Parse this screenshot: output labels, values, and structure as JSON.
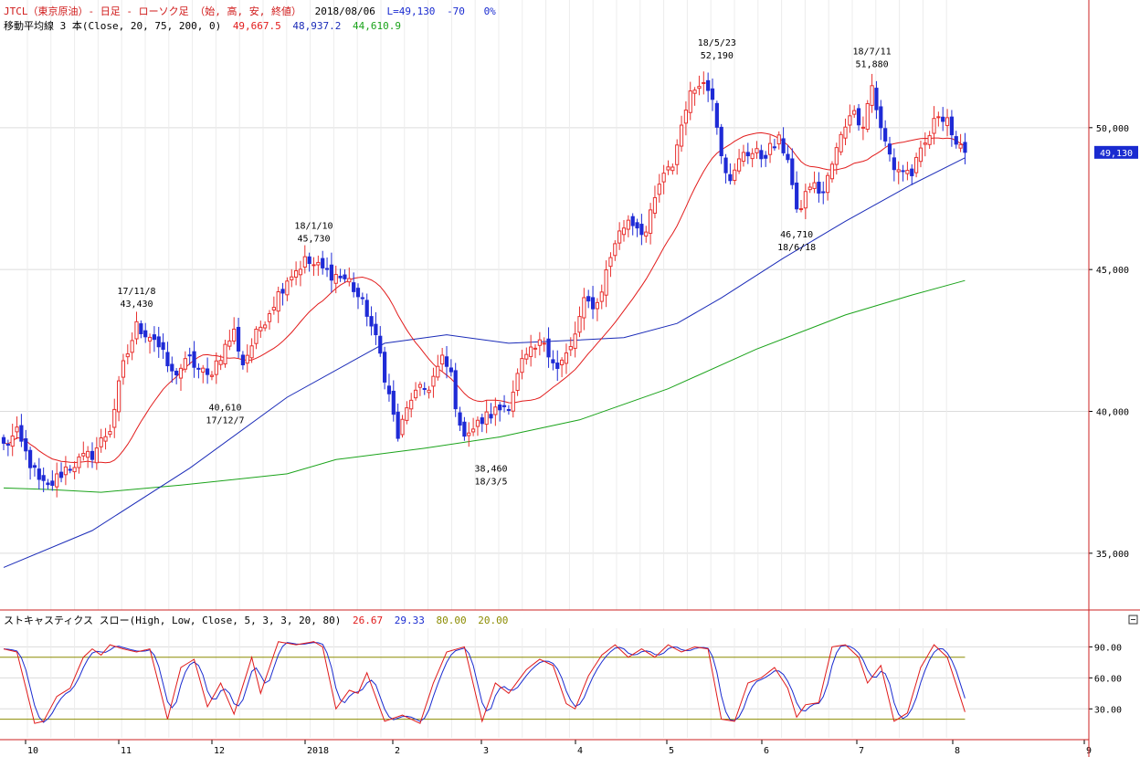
{
  "header": {
    "line1": {
      "title": "JTCL（東京原油）- 日足 - ローソク足 （始, 高, 安, 終値）",
      "date": "2018/08/06",
      "last": "L=49,130",
      "change": "-70",
      "pct": "0%"
    },
    "line2": {
      "label": "移動平均線 3 本(Close, 20, 75, 200, 0)",
      "ma20": "49,667.5",
      "ma75": "48,937.2",
      "ma200": "44,610.9"
    },
    "stoch": {
      "label": "ストキャスティクス スロー(High, Low, Close, 5, 3, 3, 20, 80)",
      "k": "26.67",
      "d": "29.33",
      "upper": "80.00",
      "lower": "20.00"
    }
  },
  "colors": {
    "up": "#e8302e",
    "down": "#1f2bd6",
    "ma20": "#e21c1c",
    "ma75": "#1a2bb8",
    "ma200": "#1aa31a",
    "stoch_k": "#e01a1a",
    "stoch_d": "#1a2bd0",
    "bands": "#8b8b00",
    "grid": "#dcdcdc",
    "frame": "#cc2222"
  },
  "chart_data": [
    {
      "type": "candlestick",
      "title": "JTCL（東京原油）- 日足",
      "ylim": [
        33000,
        54500
      ],
      "y_ticks": [
        "35,000",
        "40,000",
        "45,000",
        "50,000"
      ],
      "y_tick_values": [
        35000,
        40000,
        45000,
        50000
      ],
      "current_price_label": "49,130",
      "current_price": 49130,
      "x_month_labels": [
        "10",
        "11",
        "12",
        "2018",
        "2",
        "3",
        "4",
        "5",
        "6",
        "7",
        "8",
        "9"
      ],
      "anchors": [
        {
          "day": 0,
          "close": 38800
        },
        {
          "day": 3,
          "close": 39200
        },
        {
          "day": 8,
          "close": 37500
        },
        {
          "day": 10,
          "close": 37300
        },
        {
          "day": 14,
          "close": 38000
        },
        {
          "day": 20,
          "close": 38500
        },
        {
          "day": 24,
          "close": 39400
        },
        {
          "day": 27,
          "close": 41600
        },
        {
          "day": 30,
          "close": 43000
        },
        {
          "day": 34,
          "close": 42600
        },
        {
          "day": 38,
          "close": 41300
        },
        {
          "day": 42,
          "close": 41800
        },
        {
          "day": 46,
          "close": 41200
        },
        {
          "day": 52,
          "close": 42800
        },
        {
          "day": 54,
          "close": 41700
        },
        {
          "day": 58,
          "close": 43000
        },
        {
          "day": 64,
          "close": 44700
        },
        {
          "day": 68,
          "close": 45300
        },
        {
          "day": 72,
          "close": 45000
        },
        {
          "day": 78,
          "close": 44600
        },
        {
          "day": 82,
          "close": 43500
        },
        {
          "day": 85,
          "close": 42000
        },
        {
          "day": 89,
          "close": 39100
        },
        {
          "day": 92,
          "close": 40500
        },
        {
          "day": 96,
          "close": 40900
        },
        {
          "day": 99,
          "close": 41800
        },
        {
          "day": 101,
          "close": 41300
        },
        {
          "day": 103,
          "close": 39300
        },
        {
          "day": 106,
          "close": 39400
        },
        {
          "day": 109,
          "close": 39800
        },
        {
          "day": 114,
          "close": 40300
        },
        {
          "day": 117,
          "close": 41700
        },
        {
          "day": 122,
          "close": 42500
        },
        {
          "day": 125,
          "close": 41500
        },
        {
          "day": 128,
          "close": 42200
        },
        {
          "day": 131,
          "close": 43800
        },
        {
          "day": 134,
          "close": 43800
        },
        {
          "day": 138,
          "close": 46000
        },
        {
          "day": 141,
          "close": 46800
        },
        {
          "day": 145,
          "close": 46300
        },
        {
          "day": 148,
          "close": 48000
        },
        {
          "day": 151,
          "close": 48700
        },
        {
          "day": 154,
          "close": 50800
        },
        {
          "day": 157,
          "close": 51700
        },
        {
          "day": 160,
          "close": 51200
        },
        {
          "day": 162,
          "close": 49200
        },
        {
          "day": 164,
          "close": 48000
        },
        {
          "day": 167,
          "close": 49200
        },
        {
          "day": 171,
          "close": 49000
        },
        {
          "day": 175,
          "close": 49500
        },
        {
          "day": 177,
          "close": 49000
        },
        {
          "day": 179,
          "close": 46900
        },
        {
          "day": 182,
          "close": 48000
        },
        {
          "day": 185,
          "close": 47700
        },
        {
          "day": 188,
          "close": 49200
        },
        {
          "day": 191,
          "close": 50600
        },
        {
          "day": 194,
          "close": 50200
        },
        {
          "day": 196,
          "close": 51500
        },
        {
          "day": 198,
          "close": 49900
        },
        {
          "day": 201,
          "close": 48600
        },
        {
          "day": 205,
          "close": 48400
        },
        {
          "day": 208,
          "close": 49400
        },
        {
          "day": 211,
          "close": 50500
        },
        {
          "day": 213,
          "close": 50400
        },
        {
          "day": 215,
          "close": 49200
        },
        {
          "day": 217,
          "close": 49130
        }
      ],
      "ma75_points": [
        [
          0,
          34500
        ],
        [
          20,
          35800
        ],
        [
          42,
          38000
        ],
        [
          64,
          40500
        ],
        [
          86,
          42400
        ],
        [
          100,
          42700
        ],
        [
          114,
          42400
        ],
        [
          128,
          42500
        ],
        [
          140,
          42600
        ],
        [
          152,
          43100
        ],
        [
          162,
          44000
        ],
        [
          176,
          45400
        ],
        [
          190,
          46700
        ],
        [
          205,
          48000
        ],
        [
          217,
          48937
        ]
      ],
      "ma200_points": [
        [
          0,
          37300
        ],
        [
          10,
          37250
        ],
        [
          22,
          37150
        ],
        [
          40,
          37400
        ],
        [
          64,
          37800
        ],
        [
          75,
          38300
        ],
        [
          95,
          38700
        ],
        [
          112,
          39100
        ],
        [
          130,
          39700
        ],
        [
          150,
          40800
        ],
        [
          170,
          42200
        ],
        [
          190,
          43400
        ],
        [
          205,
          44100
        ],
        [
          217,
          44611
        ]
      ],
      "annotations": [
        {
          "date": "17/11/8",
          "value": "43,430",
          "day": 30,
          "price": 43430,
          "pos": "above"
        },
        {
          "date": "17/12/7",
          "value": "40,610",
          "day": 50,
          "price": 40610,
          "pos": "below"
        },
        {
          "date": "18/1/10",
          "value": "45,730",
          "day": 70,
          "price": 45730,
          "pos": "above"
        },
        {
          "date": "18/3/5",
          "value": "38,460",
          "day": 110,
          "price": 38460,
          "pos": "below"
        },
        {
          "date": "18/5/23",
          "value": "52,190",
          "day": 161,
          "price": 52190,
          "pos": "above"
        },
        {
          "date": "18/6/18",
          "value": "46,710",
          "day": 179,
          "price": 46710,
          "pos": "below"
        },
        {
          "date": "18/7/11",
          "value": "51,880",
          "day": 196,
          "price": 51880,
          "pos": "above"
        }
      ]
    },
    {
      "type": "line",
      "title": "ストキャスティクス スロー",
      "ylim": [
        2,
        108
      ],
      "y_ticks": [
        "30.00",
        "60.00",
        "90.00"
      ],
      "y_tick_values": [
        30,
        60,
        90
      ],
      "bands": [
        80,
        20
      ],
      "k_anchors": [
        [
          0,
          88
        ],
        [
          3,
          85
        ],
        [
          7,
          16
        ],
        [
          9,
          18
        ],
        [
          12,
          42
        ],
        [
          15,
          50
        ],
        [
          18,
          80
        ],
        [
          20,
          88
        ],
        [
          22,
          82
        ],
        [
          24,
          92
        ],
        [
          27,
          88
        ],
        [
          30,
          85
        ],
        [
          33,
          88
        ],
        [
          37,
          20
        ],
        [
          40,
          70
        ],
        [
          43,
          78
        ],
        [
          46,
          32
        ],
        [
          49,
          55
        ],
        [
          52,
          25
        ],
        [
          56,
          80
        ],
        [
          58,
          45
        ],
        [
          62,
          95
        ],
        [
          66,
          92
        ],
        [
          70,
          95
        ],
        [
          72,
          90
        ],
        [
          75,
          30
        ],
        [
          78,
          48
        ],
        [
          80,
          45
        ],
        [
          82,
          65
        ],
        [
          86,
          18
        ],
        [
          90,
          24
        ],
        [
          92,
          20
        ],
        [
          94,
          16
        ],
        [
          97,
          55
        ],
        [
          100,
          85
        ],
        [
          104,
          90
        ],
        [
          108,
          18
        ],
        [
          111,
          55
        ],
        [
          114,
          45
        ],
        [
          118,
          68
        ],
        [
          121,
          78
        ],
        [
          124,
          72
        ],
        [
          127,
          35
        ],
        [
          129,
          30
        ],
        [
          132,
          62
        ],
        [
          135,
          82
        ],
        [
          138,
          92
        ],
        [
          141,
          80
        ],
        [
          144,
          88
        ],
        [
          147,
          80
        ],
        [
          150,
          92
        ],
        [
          153,
          85
        ],
        [
          156,
          90
        ],
        [
          159,
          88
        ],
        [
          162,
          20
        ],
        [
          165,
          18
        ],
        [
          168,
          55
        ],
        [
          171,
          60
        ],
        [
          174,
          70
        ],
        [
          177,
          50
        ],
        [
          179,
          22
        ],
        [
          181,
          34
        ],
        [
          184,
          36
        ],
        [
          187,
          90
        ],
        [
          190,
          92
        ],
        [
          193,
          80
        ],
        [
          195,
          55
        ],
        [
          198,
          72
        ],
        [
          201,
          18
        ],
        [
          204,
          26
        ],
        [
          207,
          70
        ],
        [
          210,
          92
        ],
        [
          213,
          80
        ],
        [
          217,
          27
        ]
      ]
    }
  ]
}
